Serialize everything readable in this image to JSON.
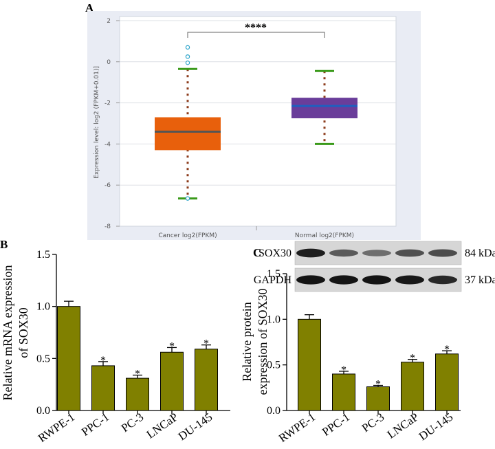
{
  "panels": {
    "a": "A",
    "b": "B",
    "c": "C"
  },
  "chart_data": [
    {
      "panel": "A",
      "type": "box",
      "ylabel": "Expression level: log2 (FPKM+0.01)]",
      "ylim": [
        -8,
        2
      ],
      "yticks": [
        2,
        0,
        -2,
        -4,
        -6,
        -8
      ],
      "grid": true,
      "significance": "****",
      "boxes": [
        {
          "label": "Cancer log2(FPKM)",
          "color": "#e8600c",
          "median_color": "#555555",
          "q1": -4.3,
          "median": -3.4,
          "q3": -2.7,
          "whisker_low": -6.65,
          "whisker_high": -0.35,
          "outliers": [
            0.7,
            0.25,
            -0.05,
            -6.65
          ]
        },
        {
          "label": "Normal log2(FPKM)",
          "color": "#6a3d9a",
          "median_color": "#1f5fbf",
          "q1": -2.75,
          "median": -2.15,
          "q3": -1.75,
          "whisker_low": -4.0,
          "whisker_high": -0.45,
          "outliers": []
        }
      ]
    },
    {
      "panel": "B",
      "type": "bar",
      "ylabel_lines": [
        "Relative mRNA expression",
        "of SOX30"
      ],
      "ylim": [
        0,
        1.5
      ],
      "yticks": [
        "0.0",
        "0.5",
        "1.0",
        "1.5"
      ],
      "categories": [
        "RWPE-1",
        "PPC-1",
        "PC-3",
        "LNCaP",
        "DU-145"
      ],
      "values": [
        1.0,
        0.43,
        0.31,
        0.56,
        0.59
      ],
      "errors": [
        0.05,
        0.04,
        0.03,
        0.045,
        0.04
      ],
      "significance": [
        "",
        "*",
        "*",
        "*",
        "*"
      ],
      "bar_color": "#808000"
    },
    {
      "panel": "C",
      "type": "bar",
      "ylabel_lines": [
        "Relative protein",
        "expression of SOX30"
      ],
      "ylim": [
        0,
        1.5
      ],
      "yticks": [
        "0.0",
        "0.5",
        "1.0",
        "1.5"
      ],
      "categories": [
        "RWPE-1",
        "PPC-1",
        "PC-3",
        "LNCaP",
        "DU-145"
      ],
      "values": [
        1.0,
        0.4,
        0.26,
        0.53,
        0.62
      ],
      "errors": [
        0.05,
        0.03,
        0.015,
        0.03,
        0.035
      ],
      "significance": [
        "",
        "*",
        "*",
        "*",
        "*"
      ],
      "bar_color": "#808000"
    }
  ],
  "blot": {
    "rows": [
      {
        "protein": "SOX30",
        "size": "84 kDa",
        "intensities": [
          0.85,
          0.55,
          0.45,
          0.6,
          0.62
        ]
      },
      {
        "protein": "GAPDH",
        "size": "37 kDa",
        "intensities": [
          0.9,
          0.9,
          0.9,
          0.88,
          0.8
        ]
      }
    ]
  }
}
